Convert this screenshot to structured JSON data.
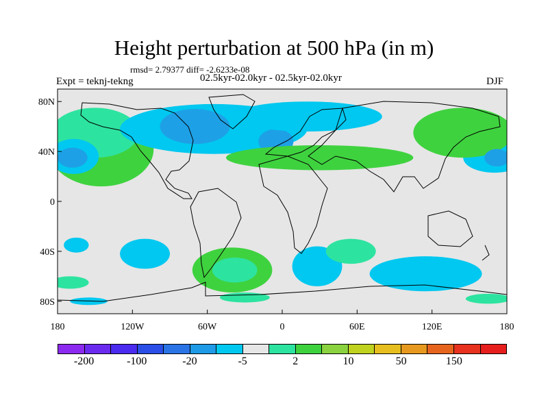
{
  "title": "Height perturbation at 500 hPa (in m)",
  "stats_line": "rmsd= 2.79377 diff= -2.6233e-08",
  "experiment": "Expt = teknj-tekng",
  "period": "02.5kyr-02.0kyr - 02.5kyr-02.0kyr",
  "season": "DJF",
  "map": {
    "projection": "cylindrical-equidistant",
    "lon_range": [
      -180,
      180
    ],
    "lat_range": [
      -90,
      90
    ],
    "background_color": "#e6e6e6",
    "coastline_color": "#000000",
    "y_ticks": [
      {
        "lat": 80,
        "label": "80N"
      },
      {
        "lat": 40,
        "label": "40N"
      },
      {
        "lat": 0,
        "label": "0"
      },
      {
        "lat": -40,
        "label": "40S"
      },
      {
        "lat": -80,
        "label": "80S"
      }
    ],
    "x_ticks": [
      {
        "lon": -180,
        "label": "180"
      },
      {
        "lon": -120,
        "label": "120W"
      },
      {
        "lon": -60,
        "label": "60W"
      },
      {
        "lon": 0,
        "label": "0"
      },
      {
        "lon": 60,
        "label": "60E"
      },
      {
        "lon": 120,
        "label": "120E"
      },
      {
        "lon": 180,
        "label": "180"
      }
    ],
    "field_regions": [
      {
        "level": "10",
        "color": "#3fd23f",
        "center_lon": -145,
        "center_lat": 42,
        "rlon": 42,
        "rlat": 30
      },
      {
        "level": "2",
        "color": "#2de3a0",
        "center_lon": -150,
        "center_lat": 55,
        "rlon": 35,
        "rlat": 20
      },
      {
        "level": "-5",
        "color": "#00c8f0",
        "center_lon": -167,
        "center_lat": 36,
        "rlon": 20,
        "rlat": 14
      },
      {
        "level": "-20",
        "color": "#1ea0e6",
        "center_lon": -168,
        "center_lat": 35,
        "rlon": 12,
        "rlat": 8
      },
      {
        "level": "-5",
        "color": "#00c8f0",
        "center_lon": -55,
        "center_lat": 58,
        "rlon": 75,
        "rlat": 20
      },
      {
        "level": "-20",
        "color": "#1ea0e6",
        "center_lon": -70,
        "center_lat": 60,
        "rlon": 28,
        "rlat": 14
      },
      {
        "level": "-20",
        "color": "#1ea0e6",
        "center_lon": -5,
        "center_lat": 48,
        "rlon": 14,
        "rlat": 10
      },
      {
        "level": "10",
        "color": "#3fd23f",
        "center_lon": 30,
        "center_lat": 35,
        "rlon": 75,
        "rlat": 10
      },
      {
        "level": "-5",
        "color": "#00c8f0",
        "center_lon": 20,
        "center_lat": 68,
        "rlon": 60,
        "rlat": 12
      },
      {
        "level": "-5",
        "color": "#00c8f0",
        "center_lon": 170,
        "center_lat": 35,
        "rlon": 25,
        "rlat": 12
      },
      {
        "level": "10",
        "color": "#3fd23f",
        "center_lon": 145,
        "center_lat": 55,
        "rlon": 40,
        "rlat": 20
      },
      {
        "level": "-20",
        "color": "#1ea0e6",
        "center_lon": 172,
        "center_lat": 35,
        "rlon": 10,
        "rlat": 7
      },
      {
        "level": "-5",
        "color": "#00c8f0",
        "center_lon": -110,
        "center_lat": -42,
        "rlon": 20,
        "rlat": 12
      },
      {
        "level": "-5",
        "color": "#00c8f0",
        "center_lon": -165,
        "center_lat": -35,
        "rlon": 10,
        "rlat": 6
      },
      {
        "level": "10",
        "color": "#3fd23f",
        "center_lon": -40,
        "center_lat": -55,
        "rlon": 32,
        "rlat": 18
      },
      {
        "level": "2",
        "color": "#2de3a0",
        "center_lon": -38,
        "center_lat": -55,
        "rlon": 18,
        "rlat": 10
      },
      {
        "level": "-5",
        "color": "#00c8f0",
        "center_lon": 28,
        "center_lat": -52,
        "rlon": 20,
        "rlat": 16
      },
      {
        "level": "2",
        "color": "#2de3a0",
        "center_lon": 55,
        "center_lat": -40,
        "rlon": 20,
        "rlat": 10
      },
      {
        "level": "-5",
        "color": "#00c8f0",
        "center_lon": 115,
        "center_lat": -58,
        "rlon": 45,
        "rlat": 14
      },
      {
        "level": "2",
        "color": "#2de3a0",
        "center_lon": -170,
        "center_lat": -65,
        "rlon": 15,
        "rlat": 5
      },
      {
        "level": "-5",
        "color": "#00c8f0",
        "center_lon": -155,
        "center_lat": -80,
        "rlon": 15,
        "rlat": 3
      },
      {
        "level": "2",
        "color": "#2de3a0",
        "center_lon": 165,
        "center_lat": -78,
        "rlon": 18,
        "rlat": 4
      },
      {
        "level": "2",
        "color": "#2de3a0",
        "center_lon": -30,
        "center_lat": -77,
        "rlon": 20,
        "rlat": 4
      }
    ]
  },
  "colorbar": {
    "colors": [
      "#8c2bef",
      "#6b2bef",
      "#4a2bef",
      "#2a4ee6",
      "#2a74e6",
      "#1e9ae6",
      "#00c8f0",
      "#e6e6e6",
      "#2de3a0",
      "#3fd23f",
      "#8ad23f",
      "#bfd21e",
      "#e6be1e",
      "#e6991e",
      "#e6641e",
      "#e6321e",
      "#e61e1e"
    ],
    "labels": [
      {
        "index": 1,
        "text": "-200"
      },
      {
        "index": 3,
        "text": "-100"
      },
      {
        "index": 5,
        "text": "-20"
      },
      {
        "index": 7,
        "text": "-5"
      },
      {
        "index": 9,
        "text": "2"
      },
      {
        "index": 11,
        "text": "10"
      },
      {
        "index": 13,
        "text": "50"
      },
      {
        "index": 15,
        "text": "150"
      }
    ]
  }
}
